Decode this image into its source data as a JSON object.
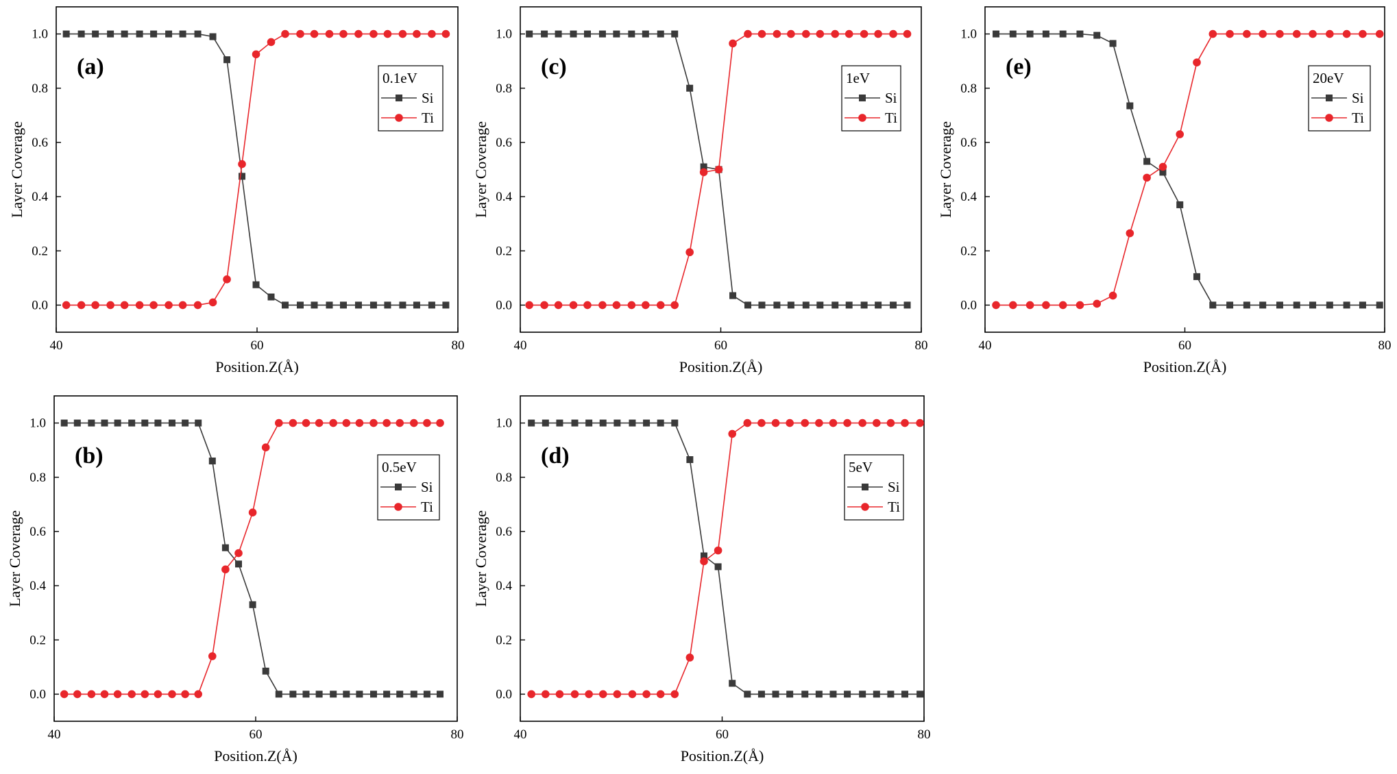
{
  "colors": {
    "si": "#3a3a3a",
    "ti": "#e8262b",
    "axis": "#000000",
    "legend_border": "#000000"
  },
  "chart_data": [
    {
      "type": "line",
      "panel": "(a)",
      "legend_title": "0.1eV",
      "xlabel": "Position.Z(Å)",
      "ylabel": "Layer Coverage",
      "xlim": [
        40,
        80
      ],
      "ylim": [
        -0.1,
        1.1
      ],
      "xticks": [
        "40",
        "60",
        "80"
      ],
      "yticks": [
        "0.0",
        "0.2",
        "0.4",
        "0.6",
        "0.8",
        "1.0"
      ],
      "legend_position": "top-right",
      "series": [
        {
          "name": "Si",
          "marker": "square",
          "x": [
            41.0,
            42.5,
            43.9,
            45.4,
            46.8,
            48.3,
            49.7,
            51.2,
            52.6,
            54.1,
            55.6,
            57.0,
            58.5,
            59.9,
            61.4,
            62.8,
            64.3,
            65.7,
            67.2,
            68.6,
            70.1,
            71.6,
            73.0,
            74.5,
            75.9,
            77.4,
            78.8
          ],
          "y": [
            1.0,
            1.0,
            1.0,
            1.0,
            1.0,
            1.0,
            1.0,
            1.0,
            1.0,
            1.0,
            0.99,
            0.905,
            0.475,
            0.075,
            0.03,
            0.0,
            0.0,
            0.0,
            0.0,
            0.0,
            0.0,
            0.0,
            0.0,
            0.0,
            0.0,
            0.0,
            0.0
          ]
        },
        {
          "name": "Ti",
          "marker": "circle",
          "x": [
            41.0,
            42.5,
            43.9,
            45.4,
            46.8,
            48.3,
            49.7,
            51.2,
            52.6,
            54.1,
            55.6,
            57.0,
            58.5,
            59.9,
            61.4,
            62.8,
            64.3,
            65.7,
            67.2,
            68.6,
            70.1,
            71.6,
            73.0,
            74.5,
            75.9,
            77.4,
            78.8
          ],
          "y": [
            0.0,
            0.0,
            0.0,
            0.0,
            0.0,
            0.0,
            0.0,
            0.0,
            0.0,
            0.0,
            0.01,
            0.095,
            0.52,
            0.925,
            0.97,
            1.0,
            1.0,
            1.0,
            1.0,
            1.0,
            1.0,
            1.0,
            1.0,
            1.0,
            1.0,
            1.0,
            1.0
          ]
        }
      ]
    },
    {
      "type": "line",
      "panel": "(c)",
      "legend_title": "1eV",
      "xlabel": "Position.Z(Å)",
      "ylabel": "Layer Coverage",
      "xlim": [
        40,
        80
      ],
      "ylim": [
        -0.1,
        1.1
      ],
      "xticks": [
        "40",
        "60",
        "80"
      ],
      "yticks": [
        "0.0",
        "0.2",
        "0.4",
        "0.6",
        "0.8",
        "1.0"
      ],
      "legend_position": "top-right",
      "series": [
        {
          "name": "Si",
          "marker": "square",
          "x": [
            40.9,
            42.4,
            43.8,
            45.3,
            46.7,
            48.2,
            49.6,
            51.1,
            52.5,
            54.0,
            55.4,
            56.9,
            58.3,
            59.8,
            61.2,
            62.7,
            64.1,
            65.6,
            67.0,
            68.5,
            69.9,
            71.4,
            72.8,
            74.3,
            75.7,
            77.2,
            78.6
          ],
          "y": [
            1.0,
            1.0,
            1.0,
            1.0,
            1.0,
            1.0,
            1.0,
            1.0,
            1.0,
            1.0,
            1.0,
            0.8,
            0.51,
            0.5,
            0.035,
            0.0,
            0.0,
            0.0,
            0.0,
            0.0,
            0.0,
            0.0,
            0.0,
            0.0,
            0.0,
            0.0,
            0.0
          ]
        },
        {
          "name": "Ti",
          "marker": "circle",
          "x": [
            40.9,
            42.4,
            43.8,
            45.3,
            46.7,
            48.2,
            49.6,
            51.1,
            52.5,
            54.0,
            55.4,
            56.9,
            58.3,
            59.8,
            61.2,
            62.7,
            64.1,
            65.6,
            67.0,
            68.5,
            69.9,
            71.4,
            72.8,
            74.3,
            75.7,
            77.2,
            78.6
          ],
          "y": [
            0.0,
            0.0,
            0.0,
            0.0,
            0.0,
            0.0,
            0.0,
            0.0,
            0.0,
            0.0,
            0.0,
            0.195,
            0.49,
            0.5,
            0.965,
            1.0,
            1.0,
            1.0,
            1.0,
            1.0,
            1.0,
            1.0,
            1.0,
            1.0,
            1.0,
            1.0,
            1.0
          ]
        }
      ]
    },
    {
      "type": "line",
      "panel": "(e)",
      "legend_title": "20eV",
      "xlabel": "Position.Z(Å)",
      "ylabel": "Layer Coverage",
      "xlim": [
        40,
        80
      ],
      "ylim": [
        -0.1,
        1.1
      ],
      "xticks": [
        "40",
        "60",
        "80"
      ],
      "yticks": [
        "0.0",
        "0.2",
        "0.4",
        "0.6",
        "0.8",
        "1.0"
      ],
      "legend_position": "top-right",
      "series": [
        {
          "name": "Si",
          "marker": "square",
          "x": [
            41.1,
            42.8,
            44.5,
            46.1,
            47.8,
            49.5,
            51.2,
            52.8,
            54.5,
            56.2,
            57.8,
            59.5,
            61.2,
            62.8,
            64.5,
            66.2,
            67.8,
            69.5,
            71.2,
            72.8,
            74.5,
            76.2,
            77.8,
            79.5
          ],
          "y": [
            1.0,
            1.0,
            1.0,
            1.0,
            1.0,
            1.0,
            0.995,
            0.965,
            0.735,
            0.53,
            0.49,
            0.37,
            0.105,
            0.0,
            0.0,
            0.0,
            0.0,
            0.0,
            0.0,
            0.0,
            0.0,
            0.0,
            0.0,
            0.0
          ]
        },
        {
          "name": "Ti",
          "marker": "circle",
          "x": [
            41.1,
            42.8,
            44.5,
            46.1,
            47.8,
            49.5,
            51.2,
            52.8,
            54.5,
            56.2,
            57.8,
            59.5,
            61.2,
            62.8,
            64.5,
            66.2,
            67.8,
            69.5,
            71.2,
            72.8,
            74.5,
            76.2,
            77.8,
            79.5
          ],
          "y": [
            0.0,
            0.0,
            0.0,
            0.0,
            0.0,
            0.0,
            0.005,
            0.035,
            0.265,
            0.47,
            0.51,
            0.63,
            0.895,
            1.0,
            1.0,
            1.0,
            1.0,
            1.0,
            1.0,
            1.0,
            1.0,
            1.0,
            1.0,
            1.0
          ]
        }
      ]
    },
    {
      "type": "line",
      "panel": "(b)",
      "legend_title": "0.5eV",
      "xlabel": "Position.Z(Å)",
      "ylabel": "Layer Coverage",
      "xlim": [
        40,
        80
      ],
      "ylim": [
        -0.1,
        1.1
      ],
      "xticks": [
        "40",
        "60",
        "80"
      ],
      "yticks": [
        "0.0",
        "0.2",
        "0.4",
        "0.6",
        "0.8",
        "1.0"
      ],
      "legend_position": "top-right",
      "series": [
        {
          "name": "Si",
          "marker": "square",
          "x": [
            41.0,
            42.3,
            43.7,
            45.0,
            46.3,
            47.7,
            49.0,
            50.3,
            51.7,
            53.0,
            54.3,
            55.7,
            57.0,
            58.3,
            59.7,
            61.0,
            62.3,
            63.7,
            65.0,
            66.3,
            67.7,
            69.0,
            70.3,
            71.7,
            73.0,
            74.3,
            75.7,
            77.0,
            78.3
          ],
          "y": [
            1.0,
            1.0,
            1.0,
            1.0,
            1.0,
            1.0,
            1.0,
            1.0,
            1.0,
            1.0,
            1.0,
            0.86,
            0.54,
            0.48,
            0.33,
            0.085,
            0.0,
            0.0,
            0.0,
            0.0,
            0.0,
            0.0,
            0.0,
            0.0,
            0.0,
            0.0,
            0.0,
            0.0,
            0.0
          ]
        },
        {
          "name": "Ti",
          "marker": "circle",
          "x": [
            41.0,
            42.3,
            43.7,
            45.0,
            46.3,
            47.7,
            49.0,
            50.3,
            51.7,
            53.0,
            54.3,
            55.7,
            57.0,
            58.3,
            59.7,
            61.0,
            62.3,
            63.7,
            65.0,
            66.3,
            67.7,
            69.0,
            70.3,
            71.7,
            73.0,
            74.3,
            75.7,
            77.0,
            78.3
          ],
          "y": [
            0.0,
            0.0,
            0.0,
            0.0,
            0.0,
            0.0,
            0.0,
            0.0,
            0.0,
            0.0,
            0.0,
            0.14,
            0.46,
            0.52,
            0.67,
            0.91,
            1.0,
            1.0,
            1.0,
            1.0,
            1.0,
            1.0,
            1.0,
            1.0,
            1.0,
            1.0,
            1.0,
            1.0,
            1.0
          ]
        }
      ]
    },
    {
      "type": "line",
      "panel": "(d)",
      "legend_title": "5eV",
      "xlabel": "Position.Z(Å)",
      "ylabel": "Layer Coverage",
      "xlim": [
        40,
        80
      ],
      "ylim": [
        -0.1,
        1.1
      ],
      "xticks": [
        "40",
        "60",
        "80"
      ],
      "yticks": [
        "0.0",
        "0.2",
        "0.4",
        "0.6",
        "0.8",
        "1.0"
      ],
      "legend_position": "top-right",
      "series": [
        {
          "name": "Si",
          "marker": "square",
          "x": [
            41.1,
            42.5,
            43.9,
            45.4,
            46.8,
            48.2,
            49.6,
            51.1,
            52.5,
            53.9,
            55.3,
            56.8,
            58.2,
            59.6,
            61.0,
            62.5,
            63.9,
            65.3,
            66.7,
            68.2,
            69.6,
            71.0,
            72.4,
            73.9,
            75.3,
            76.7,
            78.1,
            79.6
          ],
          "y": [
            1.0,
            1.0,
            1.0,
            1.0,
            1.0,
            1.0,
            1.0,
            1.0,
            1.0,
            1.0,
            1.0,
            0.865,
            0.51,
            0.47,
            0.04,
            0.0,
            0.0,
            0.0,
            0.0,
            0.0,
            0.0,
            0.0,
            0.0,
            0.0,
            0.0,
            0.0,
            0.0,
            0.0
          ]
        },
        {
          "name": "Ti",
          "marker": "circle",
          "x": [
            41.1,
            42.5,
            43.9,
            45.4,
            46.8,
            48.2,
            49.6,
            51.1,
            52.5,
            53.9,
            55.3,
            56.8,
            58.2,
            59.6,
            61.0,
            62.5,
            63.9,
            65.3,
            66.7,
            68.2,
            69.6,
            71.0,
            72.4,
            73.9,
            75.3,
            76.7,
            78.1,
            79.6
          ],
          "y": [
            0.0,
            0.0,
            0.0,
            0.0,
            0.0,
            0.0,
            0.0,
            0.0,
            0.0,
            0.0,
            0.0,
            0.135,
            0.49,
            0.53,
            0.96,
            1.0,
            1.0,
            1.0,
            1.0,
            1.0,
            1.0,
            1.0,
            1.0,
            1.0,
            1.0,
            1.0,
            1.0,
            1.0
          ]
        }
      ]
    }
  ]
}
